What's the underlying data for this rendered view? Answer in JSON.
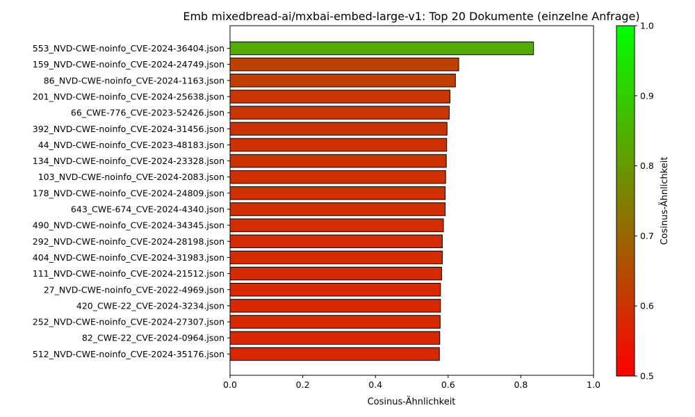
{
  "chart_data": {
    "type": "bar",
    "orientation": "horizontal",
    "title": "Emb mixedbread-ai/mxbai-embed-large-v1: Top 20 Dokumente (einzelne Anfrage)",
    "xlabel": "Cosinus-Ähnlichkeit",
    "ylabel": "",
    "xlim": [
      0,
      1
    ],
    "xticks": [
      "0.0",
      "0.2",
      "0.4",
      "0.6",
      "0.8",
      "1.0"
    ],
    "grid": false,
    "categories": [
      "553_NVD-CWE-noinfo_CVE-2024-36404.json",
      "159_NVD-CWE-noinfo_CVE-2024-24749.json",
      "86_NVD-CWE-noinfo_CVE-2024-1163.json",
      "201_NVD-CWE-noinfo_CVE-2024-25638.json",
      "66_CWE-776_CVE-2023-52426.json",
      "392_NVD-CWE-noinfo_CVE-2024-31456.json",
      "44_NVD-CWE-noinfo_CVE-2023-48183.json",
      "134_NVD-CWE-noinfo_CVE-2024-23328.json",
      "103_NVD-CWE-noinfo_CVE-2024-2083.json",
      "178_NVD-CWE-noinfo_CVE-2024-24809.json",
      "643_CWE-674_CVE-2024-4340.json",
      "490_NVD-CWE-noinfo_CVE-2024-34345.json",
      "292_NVD-CWE-noinfo_CVE-2024-28198.json",
      "404_NVD-CWE-noinfo_CVE-2024-31983.json",
      "111_NVD-CWE-noinfo_CVE-2024-21512.json",
      "27_NVD-CWE-noinfo_CVE-2022-4969.json",
      "420_CWE-22_CVE-2024-3234.json",
      "252_NVD-CWE-noinfo_CVE-2024-27307.json",
      "82_CWE-22_CVE-2024-0964.json",
      "512_NVD-CWE-noinfo_CVE-2024-35176.json"
    ],
    "values": [
      0.835,
      0.629,
      0.62,
      0.605,
      0.603,
      0.597,
      0.596,
      0.595,
      0.593,
      0.592,
      0.592,
      0.587,
      0.584,
      0.584,
      0.582,
      0.579,
      0.579,
      0.578,
      0.577,
      0.576
    ],
    "colorbar": {
      "label": "Cosinus-Ähnlichkeit",
      "range": [
        0.5,
        1.0
      ],
      "ticks": [
        "0.5",
        "0.6",
        "0.7",
        "0.8",
        "0.9",
        "1.0"
      ],
      "color_low": "#ff0000",
      "color_high": "#00ff00"
    }
  }
}
